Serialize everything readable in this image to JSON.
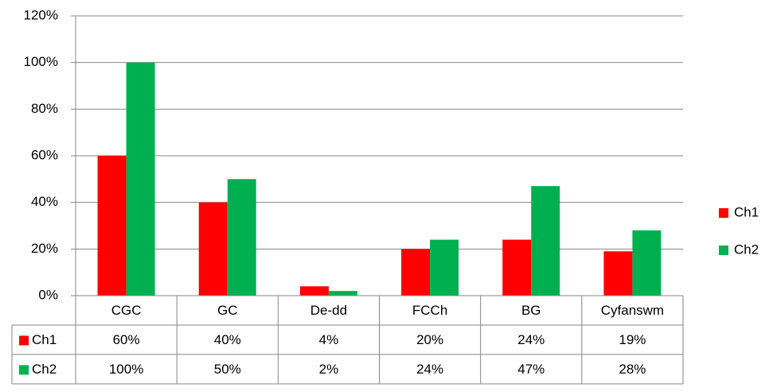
{
  "chart_data": {
    "type": "bar",
    "categories": [
      "CGC",
      "GC",
      "De-dd",
      "FCCh",
      "BG",
      "Cyfanswm"
    ],
    "series": [
      {
        "name": "Ch1",
        "color": "#ff0000",
        "values": [
          60,
          40,
          4,
          20,
          24,
          19
        ],
        "value_labels": [
          "60%",
          "40%",
          "4%",
          "20%",
          "24%",
          "19%"
        ]
      },
      {
        "name": "Ch2",
        "color": "#00b050",
        "values": [
          100,
          50,
          2,
          24,
          47,
          28
        ],
        "value_labels": [
          "100%",
          "50%",
          "2%",
          "24%",
          "47%",
          "28%"
        ]
      }
    ],
    "ylim": [
      0,
      120
    ],
    "yticks": [
      {
        "value": 0,
        "label": "0%"
      },
      {
        "value": 20,
        "label": "20%"
      },
      {
        "value": 40,
        "label": "40%"
      },
      {
        "value": 60,
        "label": "60%"
      },
      {
        "value": 80,
        "label": "80%"
      },
      {
        "value": 100,
        "label": "100%"
      },
      {
        "value": 120,
        "label": "120%"
      }
    ],
    "grid": true,
    "legend": "right",
    "data_table": true
  }
}
